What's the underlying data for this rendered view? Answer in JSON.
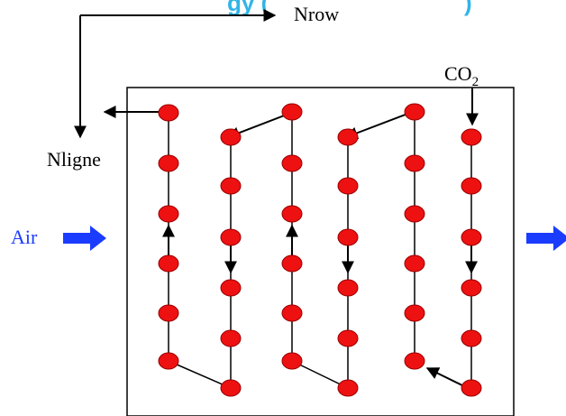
{
  "header_fragment": "gy (",
  "header_fragment_right": ")",
  "labels": {
    "nrow": "Nrow",
    "nligne": "Nligne",
    "co2_main": "CO",
    "co2_sub": "2",
    "air": "Air"
  },
  "colors": {
    "node_fill": "#ee1111",
    "node_stroke": "#990000",
    "line": "#000000",
    "air_arrow": "#1a3cff",
    "air_text": "#1a3cff",
    "header": "#2fb5e8"
  }
}
